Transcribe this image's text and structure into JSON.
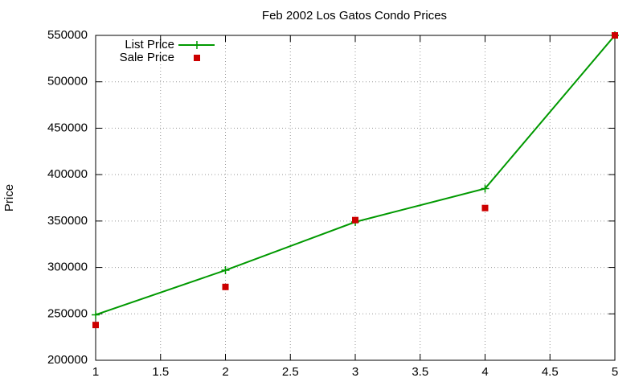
{
  "chart_data": {
    "type": "line",
    "title": "Feb 2002 Los Gatos Condo Prices",
    "ylabel": "Price",
    "x": [
      1,
      2,
      3,
      4,
      5
    ],
    "series": [
      {
        "name": "List Price",
        "color": "#009900",
        "mode": "linespoints",
        "values": [
          249000,
          297000,
          349000,
          385000,
          550000
        ]
      },
      {
        "name": "Sale Price",
        "color": "#cc0000",
        "mode": "points",
        "values": [
          238000,
          279000,
          351000,
          364000,
          550000
        ]
      }
    ],
    "xlim": [
      1,
      5
    ],
    "xticks": [
      1,
      1.5,
      2,
      2.5,
      3,
      3.5,
      4,
      4.5,
      5
    ],
    "ylim": [
      200000,
      550000
    ],
    "yticks": [
      200000,
      250000,
      300000,
      350000,
      400000,
      450000,
      500000,
      550000
    ],
    "grid": true,
    "legend": "top-left"
  }
}
